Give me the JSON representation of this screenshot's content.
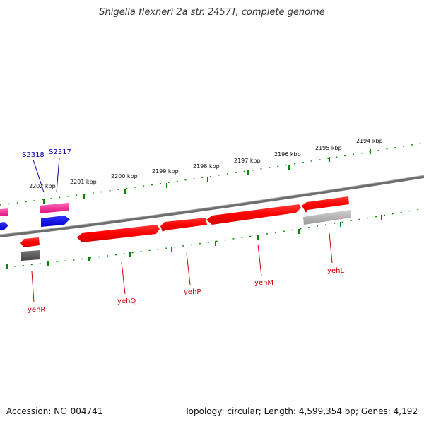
{
  "title": "Shigella flexneri 2a str. 2457T, complete genome",
  "accession": "Accession: NC_004741",
  "summary": "Topology: circular; Length: 4,599,354 bp; Genes: 4,192",
  "kbp_labels": [
    "2202 kbp",
    "2201 kbp",
    "2200 kbp",
    "2199 kbp",
    "2198 kbp",
    "2197 kbp",
    "2196 kbp",
    "2195 kbp",
    "2194 kbp"
  ],
  "colors": {
    "red": "#ff0000",
    "pink": "#ff3399",
    "blue": "#0000ff",
    "gray": "#aaaaaa",
    "darkgray": "#555555",
    "tick": "#008800",
    "red_label": "#cc0000",
    "blue_label": "#0000aa"
  },
  "genes": [
    {
      "name": "yehL",
      "color": "red"
    },
    {
      "name": "yehM",
      "color": "red"
    },
    {
      "name": "yehP",
      "color": "red"
    },
    {
      "name": "yehQ",
      "color": "red"
    },
    {
      "name": "yehR",
      "color": "red"
    },
    {
      "name": "S2317",
      "color": "blue"
    },
    {
      "name": "S2318",
      "color": "blue"
    }
  ]
}
